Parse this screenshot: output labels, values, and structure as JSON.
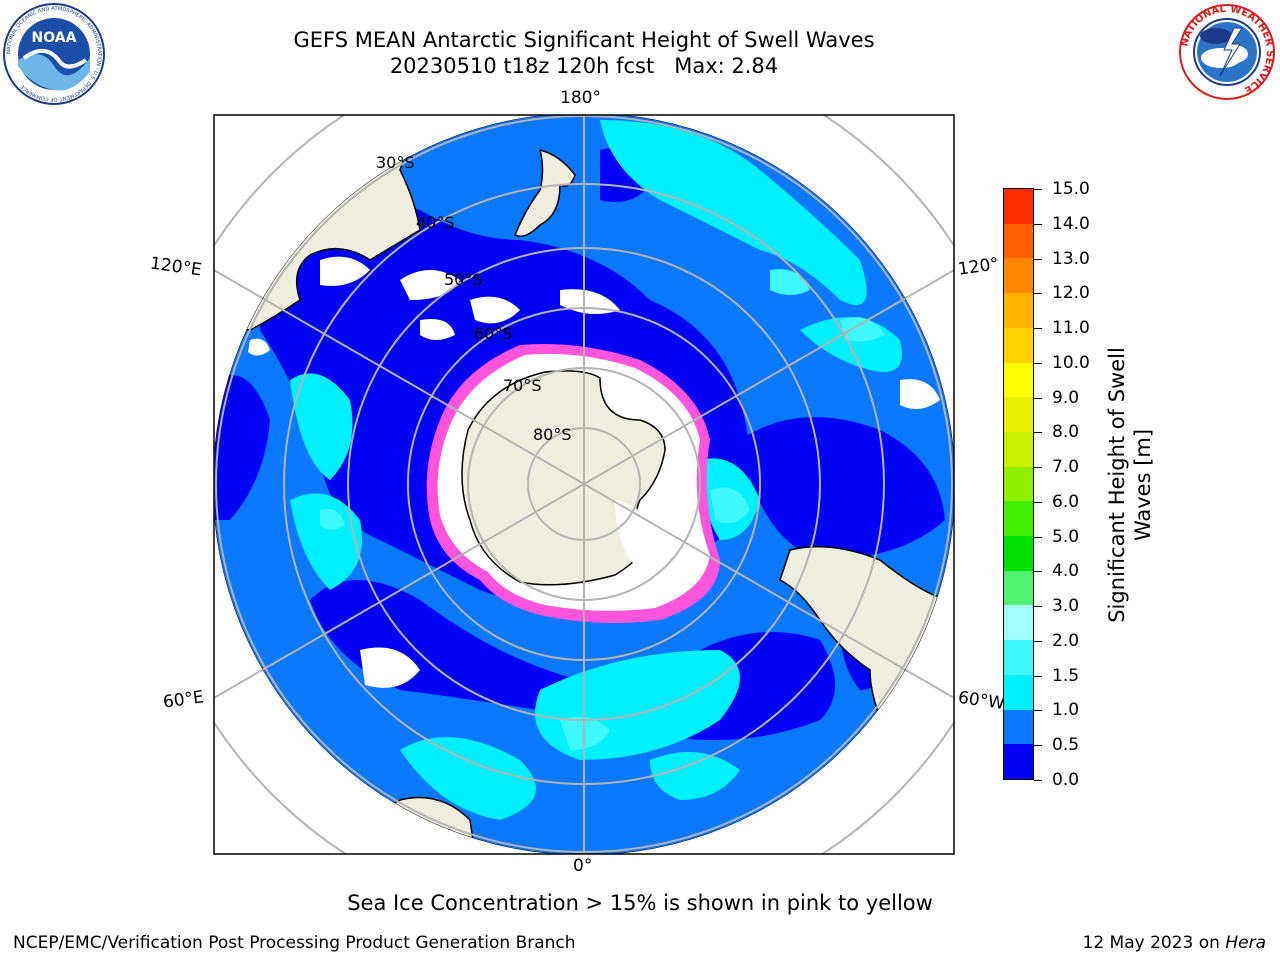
{
  "title": {
    "line1": "GEFS MEAN Antarctic Significant Height of Swell Waves",
    "line2": "20230510 t18z 120h fcst   Max: 2.84"
  },
  "logos": {
    "noaa": {
      "text": "NOAA",
      "ring_text": "NATIONAL OCEANIC AND ATMOSPHERIC ADMINISTRATION · U.S. DEPARTMENT OF COMMERCE"
    },
    "nws": {
      "ring_text": "NATIONAL WEATHER SERVICE"
    }
  },
  "map": {
    "projection": "south-polar-stereographic",
    "longitude_labels": {
      "top": "180°",
      "bottom": "0°",
      "left_upper": "120°E",
      "left_lower": "60°E",
      "right_upper": "120°",
      "right_lower": "60°W"
    },
    "latitude_labels": [
      "30°S",
      "40°S",
      "50°S",
      "60°S",
      "70°S",
      "80°S"
    ],
    "colors": {
      "land": "#efedde",
      "ice": "#ffffff",
      "ice_edge": "#ff55dd",
      "gridline": "#b4b4b4",
      "swell_0_05": "#0000f5",
      "swell_05_10": "#0a78ff",
      "swell_10_15": "#00f0ff",
      "swell_15_20": "#40f8ff"
    }
  },
  "colorbar": {
    "title_line1": "Significant Height of Swell",
    "title_line2": "Waves [m]",
    "ticks": [
      "0.0",
      "0.5",
      "1.0",
      "1.5",
      "2.0",
      "3.0",
      "4.0",
      "5.0",
      "6.0",
      "7.0",
      "8.0",
      "9.0",
      "10.0",
      "11.0",
      "12.0",
      "13.0",
      "14.0",
      "15.0"
    ],
    "colors": [
      "#0000f5",
      "#0a78ff",
      "#00f0ff",
      "#40f8ff",
      "#a0fcff",
      "#50f070",
      "#00e000",
      "#40f000",
      "#90f000",
      "#c8f000",
      "#e6f000",
      "#ffff00",
      "#ffd200",
      "#ffb000",
      "#ff8800",
      "#ff5f00",
      "#ff2d00",
      "#ff0000"
    ]
  },
  "caption": "Sea Ice Concentration > 15% is shown in pink to yellow",
  "credit": "NCEP/EMC/Verification Post Processing Product Generation Branch",
  "date": {
    "text": "12 May 2023 on ",
    "machine": "Hera"
  }
}
